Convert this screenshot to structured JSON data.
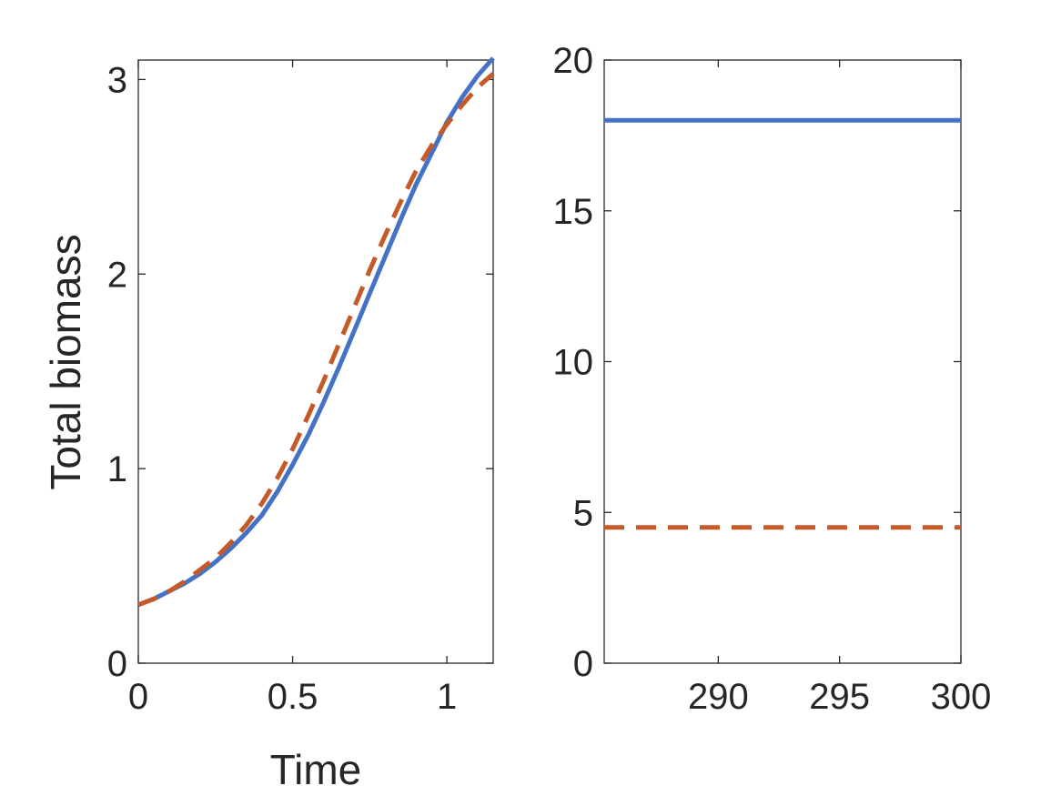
{
  "chart_data": [
    {
      "type": "line",
      "title": "",
      "xlabel": "Time",
      "ylabel": "Total biomass",
      "xlim": [
        0,
        1.15
      ],
      "ylim": [
        0,
        3.1
      ],
      "xticks": [
        0,
        0.5,
        1
      ],
      "xtick_labels": [
        "0",
        "0.5",
        "1"
      ],
      "yticks": [
        0,
        1,
        2,
        3
      ],
      "ytick_labels": [
        "0",
        "1",
        "2",
        "3"
      ],
      "grid": false,
      "legend": "none",
      "series": [
        {
          "color": "#4472C4",
          "style": "solid",
          "x": [
            0,
            0.05,
            0.1,
            0.15,
            0.2,
            0.25,
            0.3,
            0.35,
            0.4,
            0.45,
            0.5,
            0.55,
            0.6,
            0.65,
            0.7,
            0.75,
            0.8,
            0.85,
            0.9,
            0.95,
            1.0,
            1.05,
            1.1,
            1.15
          ],
          "y": [
            0.3,
            0.33,
            0.37,
            0.41,
            0.46,
            0.52,
            0.59,
            0.67,
            0.76,
            0.88,
            1.02,
            1.17,
            1.34,
            1.52,
            1.71,
            1.9,
            2.09,
            2.28,
            2.46,
            2.62,
            2.78,
            2.91,
            3.02,
            3.11
          ]
        },
        {
          "color": "#C55A28",
          "style": "dashed",
          "x": [
            0,
            0.05,
            0.1,
            0.15,
            0.2,
            0.25,
            0.3,
            0.35,
            0.4,
            0.45,
            0.5,
            0.55,
            0.6,
            0.65,
            0.7,
            0.75,
            0.8,
            0.85,
            0.9,
            0.95,
            1.0,
            1.05,
            1.1,
            1.15
          ],
          "y": [
            0.3,
            0.33,
            0.37,
            0.42,
            0.48,
            0.54,
            0.62,
            0.71,
            0.82,
            0.95,
            1.1,
            1.27,
            1.45,
            1.64,
            1.83,
            2.02,
            2.2,
            2.37,
            2.53,
            2.66,
            2.77,
            2.87,
            2.96,
            3.03
          ]
        }
      ]
    },
    {
      "type": "line",
      "title": "",
      "xlabel": "",
      "ylabel": "",
      "xlim": [
        285.3,
        300
      ],
      "ylim": [
        0,
        20
      ],
      "xticks": [
        290,
        295,
        300
      ],
      "xtick_labels": [
        "290",
        "295",
        "300"
      ],
      "yticks": [
        0,
        5,
        10,
        15,
        20
      ],
      "ytick_labels": [
        "0",
        "5",
        "10",
        "15",
        "20"
      ],
      "grid": false,
      "legend": "none",
      "series": [
        {
          "color": "#4472C4",
          "style": "solid",
          "x": [
            285.3,
            300
          ],
          "y": [
            18.0,
            18.0
          ]
        },
        {
          "color": "#C55A28",
          "style": "dashed",
          "x": [
            285.3,
            300
          ],
          "y": [
            4.5,
            4.5
          ]
        }
      ]
    }
  ]
}
